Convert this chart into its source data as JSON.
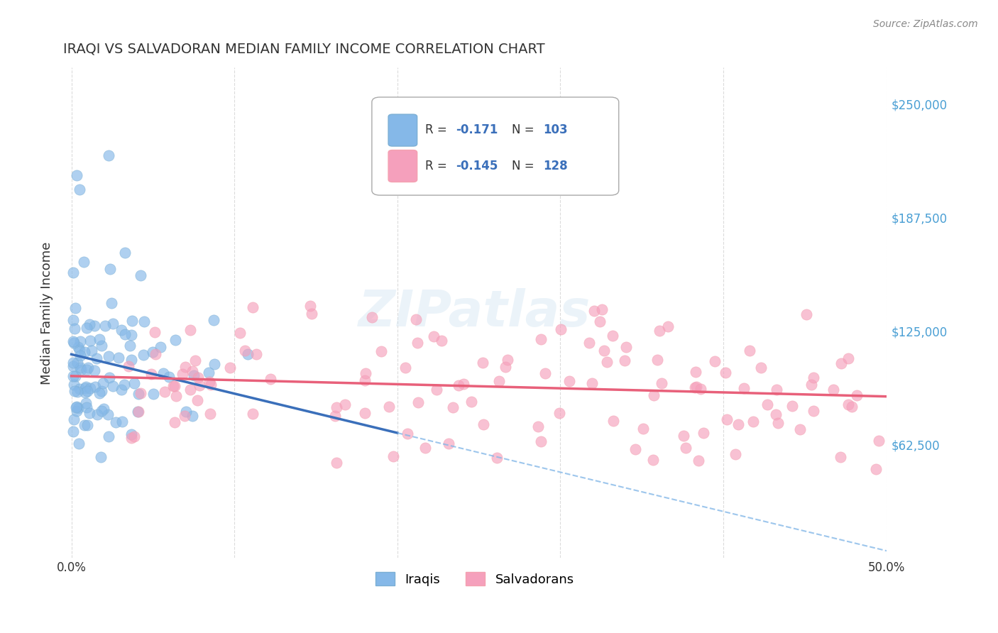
{
  "title": "IRAQI VS SALVADORAN MEDIAN FAMILY INCOME CORRELATION CHART",
  "source": "Source: ZipAtlas.com",
  "ylabel": "Median Family Income",
  "ytick_labels": [
    "$250,000",
    "$187,500",
    "$125,000",
    "$62,500"
  ],
  "ytick_values": [
    250000,
    187500,
    125000,
    62500
  ],
  "ymin": 0,
  "ymax": 270000,
  "xmin": 0.0,
  "xmax": 0.5,
  "iraqi_R": -0.171,
  "iraqi_N": 103,
  "salvadoran_R": -0.145,
  "salvadoran_N": 128,
  "iraqi_color": "#7bafd4",
  "salvadoran_color": "#f4a0b0",
  "iraqi_line_color": "#3a6fba",
  "salvadoran_line_color": "#e8607a",
  "iraqi_dot_color": "#85b8e8",
  "salvadoran_dot_color": "#f5a0bc",
  "legend_label_iraqi": "Iraqis",
  "legend_label_salvadoran": "Salvadorans",
  "watermark": "ZIPatlas",
  "background_color": "#ffffff",
  "grid_color": "#cccccc",
  "title_color": "#333333",
  "source_color": "#888888"
}
